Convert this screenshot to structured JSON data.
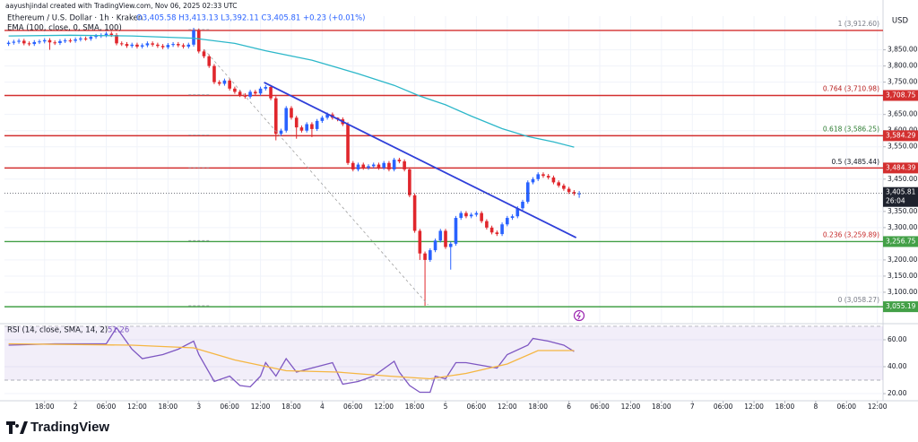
{
  "header": {
    "credit": "aayushjindal created with TradingView.com, Nov 06, 2025 02:33 UTC",
    "logo": "TradingView"
  },
  "chart_data": [
    {
      "type": "candlestick",
      "title": "Ethereum / U.S. Dollar · 1h · Kraken",
      "ohlc_text": "O3,405.58 H3,413.13 L3,392.11 C3,405.81 +0.23 (+0.01%)",
      "currency": "USD",
      "up_color": "#2962ff",
      "down_color": "#e0262c",
      "grid": true,
      "x": [
        11,
        12,
        13,
        14,
        15,
        16,
        17,
        18,
        19,
        20,
        21,
        22,
        23,
        24,
        25,
        26,
        27,
        28,
        29,
        30,
        31,
        32,
        33,
        34,
        35,
        36,
        37,
        38,
        39,
        40,
        41,
        42,
        43,
        44,
        45,
        46,
        47,
        48,
        49,
        50,
        51,
        52,
        53,
        54,
        55,
        56,
        57,
        58,
        59,
        60,
        61,
        62,
        63,
        64,
        65,
        66,
        67,
        68,
        69,
        70,
        71,
        72,
        73,
        74,
        75,
        76,
        77,
        78,
        79,
        80,
        81,
        82,
        83,
        84,
        85,
        86,
        87,
        88,
        89,
        90,
        91,
        92,
        93,
        94,
        95,
        96,
        97,
        98,
        99,
        100,
        101,
        102,
        103,
        104,
        105,
        106,
        107,
        108,
        109,
        110,
        111,
        112,
        113,
        114,
        115,
        116,
        117,
        118,
        119,
        120,
        121,
        122
      ],
      "open": [
        3868,
        3872,
        3875,
        3878,
        3870,
        3868,
        3874,
        3876,
        3880,
        3873,
        3871,
        3877,
        3879,
        3878,
        3882,
        3885,
        3884,
        3890,
        3893,
        3895,
        3900,
        3896,
        3870,
        3868,
        3862,
        3866,
        3860,
        3864,
        3870,
        3866,
        3862,
        3858,
        3865,
        3868,
        3864,
        3860,
        3866,
        3910,
        3845,
        3830,
        3800,
        3750,
        3745,
        3755,
        3730,
        3720,
        3710,
        3705,
        3720,
        3715,
        3730,
        3735,
        3700,
        3590,
        3600,
        3670,
        3640,
        3610,
        3600,
        3620,
        3605,
        3630,
        3640,
        3650,
        3640,
        3635,
        3620,
        3500,
        3480,
        3495,
        3485,
        3490,
        3495,
        3485,
        3500,
        3480,
        3510,
        3505,
        3480,
        3400,
        3290,
        3220,
        3200,
        3230,
        3260,
        3290,
        3240,
        3250,
        3330,
        3345,
        3335,
        3340,
        3345,
        3320,
        3300,
        3285,
        3280,
        3310,
        3330,
        3335,
        3360,
        3380,
        3440,
        3450,
        3465,
        3460,
        3455,
        3440,
        3430,
        3420,
        3410,
        3405.58
      ],
      "high": [
        3878,
        3881,
        3884,
        3884,
        3876,
        3880,
        3882,
        3886,
        3886,
        3879,
        3883,
        3885,
        3885,
        3888,
        3891,
        3891,
        3896,
        3899,
        3901,
        3906,
        3906,
        3902,
        3876,
        3874,
        3872,
        3872,
        3870,
        3876,
        3876,
        3872,
        3868,
        3871,
        3874,
        3874,
        3870,
        3872,
        3918,
        3916,
        3851,
        3836,
        3806,
        3756,
        3761,
        3761,
        3736,
        3726,
        3716,
        3726,
        3726,
        3736,
        3741,
        3741,
        3706,
        3606,
        3676,
        3676,
        3646,
        3616,
        3626,
        3626,
        3636,
        3646,
        3656,
        3656,
        3641,
        3641,
        3626,
        3506,
        3501,
        3501,
        3496,
        3501,
        3501,
        3506,
        3506,
        3516,
        3516,
        3511,
        3486,
        3406,
        3296,
        3226,
        3236,
        3266,
        3296,
        3296,
        3256,
        3336,
        3351,
        3351,
        3346,
        3351,
        3351,
        3326,
        3306,
        3291,
        3316,
        3336,
        3341,
        3366,
        3386,
        3446,
        3456,
        3471,
        3471,
        3466,
        3461,
        3446,
        3436,
        3426,
        3416,
        3413.13
      ],
      "low": [
        3862,
        3866,
        3869,
        3864,
        3862,
        3862,
        3868,
        3870,
        3850,
        3865,
        3865,
        3871,
        3872,
        3872,
        3876,
        3878,
        3878,
        3884,
        3887,
        3889,
        3890,
        3864,
        3862,
        3856,
        3856,
        3854,
        3854,
        3858,
        3860,
        3856,
        3852,
        3852,
        3859,
        3858,
        3854,
        3854,
        3860,
        3839,
        3824,
        3794,
        3744,
        3739,
        3739,
        3724,
        3714,
        3704,
        3699,
        3699,
        3709,
        3709,
        3724,
        3694,
        3570,
        3584,
        3594,
        3634,
        3575,
        3594,
        3594,
        3580,
        3599,
        3624,
        3634,
        3634,
        3629,
        3614,
        3494,
        3474,
        3474,
        3479,
        3479,
        3484,
        3479,
        3479,
        3474,
        3474,
        3499,
        3474,
        3394,
        3284,
        3200,
        3058.27,
        3194,
        3224,
        3254,
        3234,
        3170,
        3244,
        3324,
        3329,
        3329,
        3334,
        3314,
        3294,
        3279,
        3274,
        3274,
        3304,
        3324,
        3329,
        3354,
        3374,
        3434,
        3444,
        3454,
        3449,
        3434,
        3424,
        3414,
        3404,
        3399,
        3392.11
      ],
      "close": [
        3872,
        3875,
        3878,
        3870,
        3868,
        3874,
        3876,
        3880,
        3873,
        3871,
        3877,
        3879,
        3878,
        3882,
        3885,
        3884,
        3890,
        3893,
        3895,
        3900,
        3896,
        3870,
        3868,
        3862,
        3866,
        3860,
        3864,
        3870,
        3866,
        3862,
        3858,
        3865,
        3868,
        3864,
        3860,
        3866,
        3910,
        3845,
        3830,
        3800,
        3750,
        3745,
        3755,
        3730,
        3720,
        3710,
        3705,
        3720,
        3715,
        3730,
        3735,
        3700,
        3590,
        3600,
        3670,
        3640,
        3610,
        3600,
        3620,
        3605,
        3630,
        3640,
        3650,
        3640,
        3635,
        3620,
        3500,
        3480,
        3495,
        3485,
        3490,
        3495,
        3485,
        3500,
        3480,
        3510,
        3505,
        3480,
        3400,
        3290,
        3220,
        3200,
        3230,
        3260,
        3290,
        3240,
        3250,
        3330,
        3345,
        3335,
        3340,
        3345,
        3320,
        3300,
        3285,
        3280,
        3310,
        3330,
        3335,
        3360,
        3380,
        3440,
        3450,
        3465,
        3460,
        3455,
        3440,
        3430,
        3420,
        3410,
        3405.58,
        3405.81
      ],
      "series": [
        {
          "name": "EMA (100, close, 0, SMA, 100)",
          "color": "#2cb7c9",
          "x": [
            11,
            23,
            35,
            47,
            55,
            61,
            70,
            79,
            86,
            91,
            96,
            101,
            107,
            112,
            117,
            121
          ],
          "values": [
            3893,
            3895,
            3893,
            3886,
            3870,
            3847,
            3818,
            3776,
            3740,
            3707,
            3680,
            3645,
            3606,
            3582,
            3565,
            3549
          ]
        }
      ],
      "trendlines": [
        {
          "color": "#2f3fd9",
          "dashed": false,
          "x": [
            60.7,
            121.4
          ],
          "values": [
            3749,
            3269
          ]
        },
        {
          "color": "#a0a0a0",
          "dashed": true,
          "x": [
            49,
            92.6
          ],
          "values": [
            3852,
            3061
          ]
        }
      ],
      "levels": [
        {
          "value": 3910,
          "color": "#d32f2f"
        },
        {
          "value": 3708.75,
          "label": "3,708.75",
          "color": "#d32f2f"
        },
        {
          "value": 3584.29,
          "label": "3,584.29",
          "color": "#d32f2f"
        },
        {
          "value": 3484.39,
          "label": "3,484.39",
          "color": "#d32f2f"
        },
        {
          "value": 3256.75,
          "label": "3,256.75",
          "color": "#43a047"
        },
        {
          "value": 3055.19,
          "label": "3,055.19",
          "color": "#43a047"
        }
      ],
      "fib": [
        {
          "value": 3912.6,
          "label": "1 (3,912.60)",
          "color": "#787b86"
        },
        {
          "value": 3710.98,
          "label": "0.764 (3,710.98)",
          "color": "#b71c1c"
        },
        {
          "value": 3586.25,
          "label": "0.618 (3,586.25)",
          "color": "#2e7d32"
        },
        {
          "value": 3485.44,
          "label": "0.5 (3,485.44)",
          "color": "#131722"
        },
        {
          "value": 3259.89,
          "label": "0.236 (3,259.89)",
          "color": "#c62828"
        },
        {
          "value": 3058.27,
          "label": "0 (3,058.27)",
          "color": "#787b86"
        }
      ],
      "last": {
        "value": 3405.81,
        "label": "3,405.81",
        "countdown": "26:04",
        "color": "#1e222d"
      },
      "xlim": [
        10.2,
        181.1
      ],
      "xticks": [
        {
          "value": 18,
          "label": "18:00"
        },
        {
          "value": 24,
          "label": "2"
        },
        {
          "value": 30,
          "label": "06:00"
        },
        {
          "value": 36,
          "label": "12:00"
        },
        {
          "value": 42,
          "label": "18:00"
        },
        {
          "value": 48,
          "label": "3"
        },
        {
          "value": 54,
          "label": "06:00"
        },
        {
          "value": 60,
          "label": "12:00"
        },
        {
          "value": 66,
          "label": "18:00"
        },
        {
          "value": 72,
          "label": "4"
        },
        {
          "value": 78,
          "label": "06:00"
        },
        {
          "value": 84,
          "label": "12:00"
        },
        {
          "value": 90,
          "label": "18:00"
        },
        {
          "value": 96,
          "label": "5"
        },
        {
          "value": 102,
          "label": "06:00"
        },
        {
          "value": 108,
          "label": "12:00"
        },
        {
          "value": 114,
          "label": "18:00"
        },
        {
          "value": 120,
          "label": "6"
        },
        {
          "value": 126,
          "label": "06:00"
        },
        {
          "value": 132,
          "label": "12:00"
        },
        {
          "value": 138,
          "label": "18:00"
        },
        {
          "value": 144,
          "label": "7"
        },
        {
          "value": 150,
          "label": "06:00"
        },
        {
          "value": 156,
          "label": "12:00"
        },
        {
          "value": 162,
          "label": "18:00"
        },
        {
          "value": 168,
          "label": "8"
        },
        {
          "value": 174,
          "label": "06:00"
        },
        {
          "value": 180,
          "label": "12:00"
        }
      ],
      "ylim": [
        3005.6,
        3954.2
      ],
      "yticks": [
        {
          "value": 3100,
          "label": "3,100.00"
        },
        {
          "value": 3150,
          "label": "3,150.00"
        },
        {
          "value": 3200,
          "label": "3,200.00"
        },
        {
          "value": 3300,
          "label": "3,300.00"
        },
        {
          "value": 3350,
          "label": "3,350.00"
        },
        {
          "value": 3450,
          "label": "3,450.00"
        },
        {
          "value": 3550,
          "label": "3,550.00"
        },
        {
          "value": 3600,
          "label": "3,600.00"
        },
        {
          "value": 3650,
          "label": "3,650.00"
        },
        {
          "value": 3750,
          "label": "3,750.00"
        },
        {
          "value": 3800,
          "label": "3,800.00"
        },
        {
          "value": 3850,
          "label": "3,850.00"
        }
      ]
    },
    {
      "type": "line",
      "title": "RSI (14, close, SMA, 14, 2)",
      "value_text": "51.26",
      "band": [
        30,
        70
      ],
      "band_color": "#7e57c2",
      "grid": true,
      "series": [
        {
          "color": "#7e57c2",
          "x": [
            11,
            20,
            30,
            32,
            35,
            37,
            41,
            44,
            47,
            48,
            51,
            54,
            56,
            58,
            60,
            61,
            63,
            65,
            67,
            70,
            74,
            76,
            79,
            82,
            86,
            87,
            89,
            91,
            93,
            94,
            96,
            98,
            100,
            103,
            106,
            108,
            112,
            113,
            116,
            119,
            121
          ],
          "values": [
            56,
            57,
            57,
            69,
            53,
            46,
            49,
            53,
            59,
            49,
            29,
            33,
            26,
            25,
            33,
            43,
            33,
            46,
            36,
            39,
            43,
            27,
            29,
            33,
            44,
            36,
            26,
            21,
            21,
            33,
            31,
            43,
            43,
            41,
            39,
            49,
            56,
            61,
            59,
            56,
            51.26
          ]
        },
        {
          "color": "#f5b642",
          "x": [
            11,
            35,
            47,
            55,
            65,
            75,
            85,
            93,
            100,
            108,
            114,
            121
          ],
          "values": [
            57,
            56,
            54,
            45,
            37,
            36,
            33,
            31,
            35,
            42,
            52,
            52
          ]
        }
      ],
      "xlim": [
        10.2,
        181.1
      ],
      "ylim": [
        14.7,
        71.3
      ],
      "yticks": [
        {
          "value": 20,
          "label": "20.00"
        },
        {
          "value": 40,
          "label": "40.00"
        },
        {
          "value": 60,
          "label": "60.00"
        }
      ]
    }
  ]
}
